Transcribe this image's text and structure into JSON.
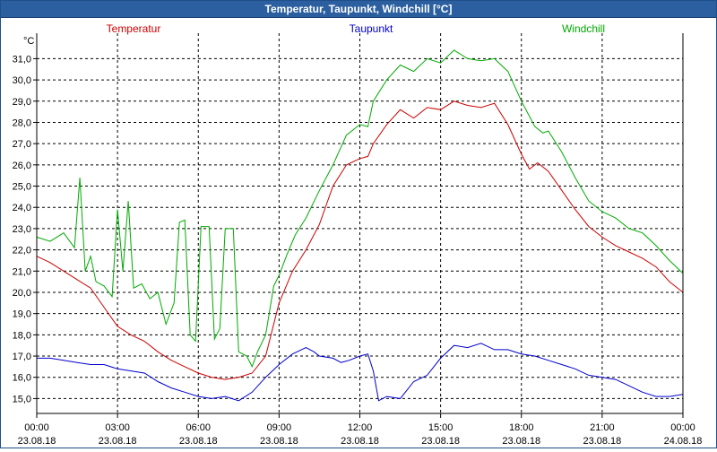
{
  "window": {
    "title": "Temperatur, Taupunkt, Windchill [°C]"
  },
  "chart_data": {
    "type": "line",
    "title": "Temperatur, Taupunkt, Windchill [°C]",
    "ylabel": "°C",
    "xlabel": "",
    "ylim": [
      14.3,
      32.2
    ],
    "xlim": [
      0,
      24
    ],
    "grid": true,
    "yticks": [
      15.0,
      16.0,
      17.0,
      18.0,
      19.0,
      20.0,
      21.0,
      22.0,
      23.0,
      24.0,
      25.0,
      26.0,
      27.0,
      28.0,
      29.0,
      30.0,
      31.0
    ],
    "ytick_labels": [
      "15,0",
      "16,0",
      "17,0",
      "18,0",
      "19,0",
      "20,0",
      "21,0",
      "22,0",
      "23,0",
      "24,0",
      "25,0",
      "26,0",
      "27,0",
      "28,0",
      "29,0",
      "30,0",
      "31,0"
    ],
    "xticks": [
      {
        "x": 0,
        "time": "00:00",
        "date": "23.08.18"
      },
      {
        "x": 3,
        "time": "03:00",
        "date": "23.08.18"
      },
      {
        "x": 6,
        "time": "06:00",
        "date": "23.08.18"
      },
      {
        "x": 9,
        "time": "09:00",
        "date": "23.08.18"
      },
      {
        "x": 12,
        "time": "12:00",
        "date": "23.08.18"
      },
      {
        "x": 15,
        "time": "15:00",
        "date": "23.08.18"
      },
      {
        "x": 18,
        "time": "18:00",
        "date": "23.08.18"
      },
      {
        "x": 21,
        "time": "21:00",
        "date": "23.08.18"
      },
      {
        "x": 24,
        "time": "00:00",
        "date": "24.08.18"
      }
    ],
    "series": [
      {
        "name": "Temperatur",
        "color": "#cc0000",
        "legend_pos": "left",
        "points": [
          [
            0,
            21.7
          ],
          [
            0.5,
            21.4
          ],
          [
            1,
            21.0
          ],
          [
            1.5,
            20.6
          ],
          [
            2,
            20.2
          ],
          [
            2.5,
            19.3
          ],
          [
            3,
            18.4
          ],
          [
            3.5,
            18.0
          ],
          [
            4,
            17.7
          ],
          [
            4.5,
            17.2
          ],
          [
            5,
            16.8
          ],
          [
            5.5,
            16.5
          ],
          [
            6,
            16.2
          ],
          [
            6.5,
            16.0
          ],
          [
            7,
            15.9
          ],
          [
            7.5,
            16.0
          ],
          [
            8,
            16.2
          ],
          [
            8.5,
            17.0
          ],
          [
            9,
            19.5
          ],
          [
            9.5,
            21.0
          ],
          [
            10,
            22.0
          ],
          [
            10.5,
            23.2
          ],
          [
            11,
            25.0
          ],
          [
            11.5,
            26.0
          ],
          [
            12,
            26.3
          ],
          [
            12.3,
            26.4
          ],
          [
            12.5,
            27.0
          ],
          [
            13,
            27.9
          ],
          [
            13.5,
            28.6
          ],
          [
            14,
            28.2
          ],
          [
            14.5,
            28.7
          ],
          [
            15,
            28.6
          ],
          [
            15.5,
            29.0
          ],
          [
            16,
            28.8
          ],
          [
            16.5,
            28.7
          ],
          [
            17,
            28.9
          ],
          [
            17.5,
            27.9
          ],
          [
            18,
            26.5
          ],
          [
            18.3,
            25.8
          ],
          [
            18.6,
            26.1
          ],
          [
            19,
            25.7
          ],
          [
            19.5,
            24.8
          ],
          [
            20,
            23.9
          ],
          [
            20.5,
            23.1
          ],
          [
            21,
            22.6
          ],
          [
            21.5,
            22.2
          ],
          [
            22,
            21.9
          ],
          [
            22.5,
            21.6
          ],
          [
            23,
            21.2
          ],
          [
            23.5,
            20.5
          ],
          [
            24,
            20.0
          ]
        ]
      },
      {
        "name": "Taupunkt",
        "color": "#0000cc",
        "legend_pos": "center",
        "points": [
          [
            0,
            16.9
          ],
          [
            0.5,
            16.9
          ],
          [
            1,
            16.8
          ],
          [
            1.5,
            16.7
          ],
          [
            2,
            16.6
          ],
          [
            2.5,
            16.6
          ],
          [
            3,
            16.4
          ],
          [
            3.5,
            16.3
          ],
          [
            4,
            16.2
          ],
          [
            4.5,
            15.8
          ],
          [
            5,
            15.5
          ],
          [
            5.5,
            15.3
          ],
          [
            6,
            15.1
          ],
          [
            6.5,
            15.0
          ],
          [
            7,
            15.1
          ],
          [
            7.5,
            14.9
          ],
          [
            8,
            15.3
          ],
          [
            8.5,
            16.0
          ],
          [
            9,
            16.6
          ],
          [
            9.5,
            17.1
          ],
          [
            10,
            17.4
          ],
          [
            10.3,
            17.2
          ],
          [
            10.5,
            17.0
          ],
          [
            11,
            16.9
          ],
          [
            11.3,
            16.7
          ],
          [
            11.6,
            16.8
          ],
          [
            12,
            17.0
          ],
          [
            12.3,
            17.1
          ],
          [
            12.5,
            16.3
          ],
          [
            12.7,
            14.9
          ],
          [
            13,
            15.1
          ],
          [
            13.5,
            15.0
          ],
          [
            14,
            15.8
          ],
          [
            14.5,
            16.1
          ],
          [
            15,
            16.9
          ],
          [
            15.5,
            17.5
          ],
          [
            16,
            17.4
          ],
          [
            16.5,
            17.6
          ],
          [
            17,
            17.3
          ],
          [
            17.5,
            17.3
          ],
          [
            18,
            17.1
          ],
          [
            18.5,
            17.0
          ],
          [
            19,
            16.8
          ],
          [
            19.5,
            16.6
          ],
          [
            20,
            16.4
          ],
          [
            20.5,
            16.1
          ],
          [
            21,
            16.0
          ],
          [
            21.5,
            15.9
          ],
          [
            22,
            15.6
          ],
          [
            22.5,
            15.3
          ],
          [
            23,
            15.1
          ],
          [
            23.5,
            15.1
          ],
          [
            24,
            15.2
          ]
        ]
      },
      {
        "name": "Windchill",
        "color": "#00aa00",
        "legend_pos": "right",
        "points": [
          [
            0,
            22.6
          ],
          [
            0.5,
            22.4
          ],
          [
            1,
            22.8
          ],
          [
            1.4,
            22.1
          ],
          [
            1.6,
            25.4
          ],
          [
            1.8,
            21.0
          ],
          [
            2,
            21.7
          ],
          [
            2.2,
            20.5
          ],
          [
            2.5,
            20.3
          ],
          [
            2.8,
            19.8
          ],
          [
            3,
            23.9
          ],
          [
            3.2,
            21.0
          ],
          [
            3.4,
            24.3
          ],
          [
            3.6,
            20.2
          ],
          [
            3.9,
            20.4
          ],
          [
            4.2,
            19.7
          ],
          [
            4.5,
            20.0
          ],
          [
            4.8,
            18.5
          ],
          [
            5.1,
            19.5
          ],
          [
            5.3,
            23.3
          ],
          [
            5.5,
            23.4
          ],
          [
            5.7,
            18.0
          ],
          [
            5.9,
            17.7
          ],
          [
            6.1,
            23.1
          ],
          [
            6.4,
            23.1
          ],
          [
            6.6,
            17.8
          ],
          [
            6.8,
            18.3
          ],
          [
            7,
            23.0
          ],
          [
            7.3,
            23.0
          ],
          [
            7.5,
            17.2
          ],
          [
            7.8,
            17.0
          ],
          [
            8.0,
            16.5
          ],
          [
            8.2,
            17.2
          ],
          [
            8.5,
            18.0
          ],
          [
            8.8,
            20.3
          ],
          [
            9,
            20.8
          ],
          [
            9.3,
            21.8
          ],
          [
            9.6,
            22.7
          ],
          [
            10,
            23.5
          ],
          [
            10.5,
            24.8
          ],
          [
            11,
            26.0
          ],
          [
            11.5,
            27.4
          ],
          [
            12,
            27.9
          ],
          [
            12.3,
            27.8
          ],
          [
            12.5,
            29.0
          ],
          [
            13,
            30.0
          ],
          [
            13.5,
            30.7
          ],
          [
            14,
            30.4
          ],
          [
            14.5,
            31.0
          ],
          [
            15,
            30.8
          ],
          [
            15.5,
            31.4
          ],
          [
            16,
            31.0
          ],
          [
            16.5,
            30.9
          ],
          [
            17,
            31.0
          ],
          [
            17.5,
            30.4
          ],
          [
            18,
            29.0
          ],
          [
            18.5,
            27.8
          ],
          [
            18.8,
            27.5
          ],
          [
            19,
            27.6
          ],
          [
            19.5,
            26.6
          ],
          [
            20,
            25.4
          ],
          [
            20.5,
            24.3
          ],
          [
            21,
            23.8
          ],
          [
            21.5,
            23.5
          ],
          [
            22,
            23.0
          ],
          [
            22.5,
            22.8
          ],
          [
            23,
            22.2
          ],
          [
            23.5,
            21.5
          ],
          [
            24,
            20.9
          ]
        ]
      }
    ]
  }
}
